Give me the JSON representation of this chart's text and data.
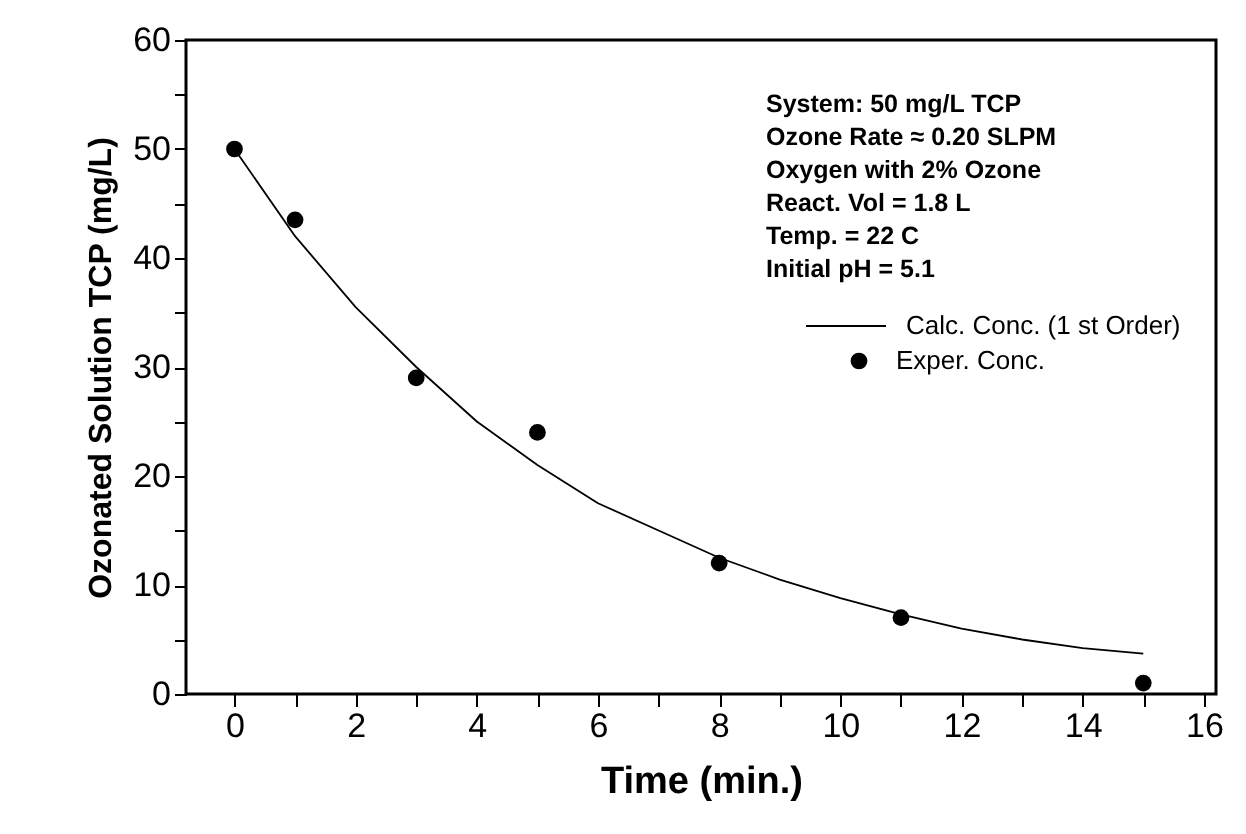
{
  "chart_data": {
    "type": "scatter",
    "xlabel": "Time (min.)",
    "ylabel": "Ozonated Solution TCP (mg/L)",
    "xlim": [
      -0.8,
      16.2
    ],
    "ylim": [
      0,
      60
    ],
    "xticks": [
      0,
      {
        "value": 1,
        "label": null
      },
      2,
      {
        "value": 3,
        "label": null
      },
      4,
      {
        "value": 5,
        "label": null
      },
      6,
      {
        "value": 7,
        "label": null
      },
      8,
      {
        "value": 9,
        "label": null
      },
      10,
      {
        "value": 11,
        "label": null
      },
      12,
      {
        "value": 13,
        "label": null
      },
      14,
      {
        "value": 15,
        "label": null
      },
      16
    ],
    "yticks": [
      0,
      {
        "value": 5,
        "label": null
      },
      10,
      {
        "value": 15,
        "label": null
      },
      20,
      {
        "value": 25,
        "label": null
      },
      30,
      {
        "value": 35,
        "label": null
      },
      40,
      {
        "value": 45,
        "label": null
      },
      50,
      {
        "value": 55,
        "label": null
      },
      60
    ],
    "grid": false,
    "legend": "right",
    "line_style": "solid",
    "annotations": [
      "System: 50 mg/L TCP",
      "Ozone Rate ≈ 0.20 SLPM",
      "Oxygen with 2% Ozone",
      "React. Vol = 1.8 L",
      "Temp. = 22 C",
      "Initial pH = 5.1"
    ],
    "series": [
      {
        "name": "Calc. Conc. (1 st Order)",
        "type": "line",
        "color": "#000000",
        "x": [
          0,
          1,
          2,
          3,
          4,
          5,
          6,
          7,
          8,
          9,
          10,
          11,
          12,
          13,
          14,
          15
        ],
        "values": [
          50,
          42,
          35.5,
          30,
          25,
          21,
          17.5,
          15,
          12.5,
          10.5,
          8.8,
          7.3,
          6,
          5,
          4.2,
          3.7
        ]
      },
      {
        "name": "Exper. Conc.",
        "type": "scatter",
        "marker": "circle",
        "color": "#000000",
        "x": [
          0,
          1,
          3,
          5,
          8,
          11,
          15
        ],
        "values": [
          50,
          43.5,
          29,
          24,
          12,
          7,
          1
        ]
      }
    ]
  }
}
